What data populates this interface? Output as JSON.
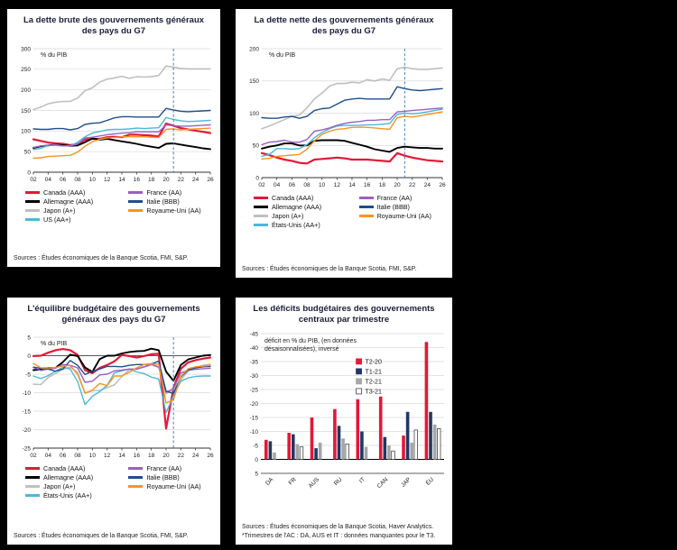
{
  "colors": {
    "canada_red": "#e31837",
    "allemagne_black": "#000000",
    "japon_gray": "#bfbfbf",
    "us_lightblue": "#4db8d6",
    "france_purple": "#9a5fc7",
    "italie_navy": "#1f4e8c",
    "royaume_uni_orange": "#f79420",
    "t1_21_navy": "#1f3864",
    "t2_21_gray": "#a6a6a6",
    "forecast_line_blue": "#4a7ebb"
  },
  "chart_data": [
    {
      "type": "line",
      "title": "La dette brute des gouvernements généraux des pays du G7",
      "annotation": "% du PIB",
      "sources": "Sources : Études économiques de la Banque Scotia, FMI, S&P.",
      "ylim": [
        0,
        300
      ],
      "yticks": [
        0,
        50,
        100,
        150,
        200,
        250,
        300
      ],
      "x_years": [
        2002,
        2003,
        2004,
        2005,
        2006,
        2007,
        2008,
        2009,
        2010,
        2011,
        2012,
        2013,
        2014,
        2015,
        2016,
        2017,
        2018,
        2019,
        2020,
        2021,
        2022,
        2023,
        2024,
        2025,
        2026
      ],
      "xtick_labels": [
        "02",
        "04",
        "06",
        "08",
        "10",
        "12",
        "14",
        "16",
        "18",
        "20",
        "22",
        "24",
        "26"
      ],
      "forecast_vline": 2021,
      "legend_columns": [
        [
          0,
          1,
          2,
          3
        ],
        [
          4,
          5,
          6
        ]
      ],
      "series": [
        {
          "name": "Canada (AAA)",
          "color": "#e31837",
          "width": 2.2,
          "values": [
            80,
            76,
            72,
            70,
            69,
            66,
            68,
            79,
            81,
            81,
            85,
            86,
            85,
            91,
            91,
            90,
            89,
            87,
            118,
            113,
            107,
            104,
            101,
            98,
            95
          ]
        },
        {
          "name": "Allemagne (AAA)",
          "color": "#000000",
          "width": 1.9,
          "values": [
            59,
            63,
            65,
            67,
            66,
            64,
            65,
            73,
            82,
            79,
            81,
            78,
            75,
            72,
            69,
            65,
            62,
            59,
            69,
            70,
            67,
            64,
            61,
            58,
            56
          ]
        },
        {
          "name": "Japon (A+)",
          "color": "#bfbfbf",
          "width": 1.6,
          "values": [
            152,
            158,
            166,
            170,
            172,
            172,
            180,
            198,
            205,
            219,
            226,
            229,
            233,
            228,
            232,
            231,
            232,
            235,
            258,
            255,
            252,
            251,
            251,
            251,
            251
          ]
        },
        {
          "name": "US (AA+)",
          "color": "#4db8d6",
          "width": 1.4,
          "values": [
            55,
            58,
            65,
            65,
            64,
            64,
            73,
            86,
            95,
            99,
            103,
            104,
            104,
            105,
            107,
            106,
            107,
            108,
            133,
            128,
            125,
            123,
            124,
            125,
            126
          ]
        },
        {
          "name": "France (AA)",
          "color": "#9a5fc7",
          "width": 1.4,
          "values": [
            60,
            64,
            65,
            67,
            64,
            64,
            68,
            83,
            85,
            88,
            91,
            93,
            95,
            96,
            98,
            98,
            98,
            98,
            115,
            113,
            112,
            112,
            113,
            114,
            115
          ]
        },
        {
          "name": "Italie (BBB)",
          "color": "#1f4e8c",
          "width": 1.4,
          "values": [
            105,
            104,
            104,
            106,
            106,
            103,
            106,
            116,
            119,
            120,
            126,
            132,
            135,
            135,
            134,
            134,
            134,
            134,
            155,
            151,
            148,
            147,
            148,
            149,
            150
          ]
        },
        {
          "name": "Royaume-Uni (AA)",
          "color": "#f79420",
          "width": 1.4,
          "values": [
            34,
            35,
            38,
            39,
            40,
            41,
            49,
            63,
            74,
            80,
            83,
            84,
            86,
            86,
            86,
            86,
            85,
            84,
            104,
            105,
            103,
            104,
            105,
            106,
            107
          ]
        }
      ]
    },
    {
      "type": "line",
      "title": "La dette nette des gouvernements généraux des pays du G7",
      "annotation": "% du PIB",
      "sources": "Sources : Études économiques de la Banque Scotia, FMI, S&P.",
      "ylim": [
        0,
        200
      ],
      "yticks": [
        0,
        50,
        100,
        150,
        200
      ],
      "x_years": [
        2002,
        2003,
        2004,
        2005,
        2006,
        2007,
        2008,
        2009,
        2010,
        2011,
        2012,
        2013,
        2014,
        2015,
        2016,
        2017,
        2018,
        2019,
        2020,
        2021,
        2022,
        2023,
        2024,
        2025,
        2026
      ],
      "xtick_labels": [
        "02",
        "04",
        "06",
        "08",
        "10",
        "12",
        "14",
        "16",
        "18",
        "20",
        "22",
        "24",
        "26"
      ],
      "forecast_vline": 2021,
      "legend_columns": [
        [
          0,
          1,
          2,
          3
        ],
        [
          4,
          5,
          6
        ]
      ],
      "series": [
        {
          "name": "Canada (AAA)",
          "color": "#e31837",
          "width": 2.2,
          "values": [
            38,
            35,
            31,
            28,
            26,
            23,
            22,
            28,
            29,
            30,
            31,
            30,
            28,
            28,
            28,
            27,
            26,
            25,
            38,
            34,
            31,
            29,
            27,
            26,
            25
          ]
        },
        {
          "name": "Allemagne (AAA)",
          "color": "#000000",
          "width": 1.9,
          "values": [
            45,
            48,
            50,
            53,
            53,
            50,
            50,
            57,
            58,
            58,
            58,
            57,
            54,
            51,
            48,
            44,
            42,
            40,
            46,
            48,
            47,
            46,
            46,
            45,
            45
          ]
        },
        {
          "name": "Japon (A+)",
          "color": "#bfbfbf",
          "width": 1.6,
          "values": [
            76,
            80,
            85,
            90,
            95,
            97,
            108,
            122,
            131,
            142,
            146,
            146,
            148,
            147,
            152,
            150,
            153,
            151,
            169,
            171,
            169,
            168,
            168,
            169,
            170
          ]
        },
        {
          "name": "États-Unis (AA+)",
          "color": "#4db8d6",
          "width": 1.4,
          "values": [
            33,
            36,
            45,
            45,
            44,
            45,
            51,
            62,
            70,
            76,
            80,
            81,
            81,
            81,
            82,
            82,
            83,
            84,
            98,
            100,
            99,
            100,
            102,
            104,
            106
          ]
        },
        {
          "name": "France (AA)",
          "color": "#9a5fc7",
          "width": 1.4,
          "values": [
            51,
            55,
            56,
            58,
            55,
            55,
            59,
            72,
            74,
            77,
            81,
            84,
            86,
            87,
            89,
            89,
            90,
            90,
            102,
            103,
            104,
            105,
            106,
            107,
            108
          ]
        },
        {
          "name": "Italie (BBB)",
          "color": "#1f4e8c",
          "width": 1.4,
          "values": [
            93,
            92,
            92,
            94,
            95,
            92,
            95,
            104,
            107,
            108,
            114,
            120,
            122,
            123,
            122,
            122,
            122,
            122,
            141,
            138,
            136,
            135,
            136,
            137,
            138
          ]
        },
        {
          "name": "Royaume-Uni (AA)",
          "color": "#f79420",
          "width": 1.4,
          "values": [
            29,
            30,
            33,
            34,
            35,
            36,
            44,
            57,
            67,
            72,
            75,
            76,
            78,
            78,
            78,
            77,
            76,
            75,
            93,
            95,
            94,
            96,
            98,
            100,
            102
          ]
        }
      ]
    },
    {
      "type": "line",
      "title": "L'équilibre budgétaire des gouvernements généraux des pays du G7",
      "annotation": "% du PIB",
      "sources": "Sources : Études économiques de la Banque Scotia, FMI, S&P.",
      "ylim": [
        -25,
        5
      ],
      "yticks": [
        -25,
        -20,
        -15,
        -10,
        -5,
        0,
        5
      ],
      "x_years": [
        2002,
        2003,
        2004,
        2005,
        2006,
        2007,
        2008,
        2009,
        2010,
        2011,
        2012,
        2013,
        2014,
        2015,
        2016,
        2017,
        2018,
        2019,
        2020,
        2021,
        2022,
        2023,
        2024,
        2025,
        2026
      ],
      "xtick_labels": [
        "02",
        "04",
        "06",
        "08",
        "10",
        "12",
        "14",
        "16",
        "18",
        "20",
        "22",
        "24",
        "26"
      ],
      "forecast_vline": 2021,
      "legend_columns": [
        [
          0,
          1,
          2,
          3
        ],
        [
          4,
          5,
          6
        ]
      ],
      "series": [
        {
          "name": "Canada (AAA)",
          "color": "#e31837",
          "width": 2.2,
          "values": [
            -0.1,
            0,
            0.8,
            1.5,
            1.8,
            1.5,
            0.2,
            -3.9,
            -4.7,
            -3.3,
            -2.5,
            -1.5,
            0.2,
            -0.1,
            -0.5,
            -0.1,
            0.4,
            0.5,
            -19.7,
            -8.7,
            -3.5,
            -1.8,
            -1.2,
            -0.8,
            -0.5
          ]
        },
        {
          "name": "Allemagne (AAA)",
          "color": "#000000",
          "width": 1.9,
          "values": [
            -3.9,
            -3.7,
            -3.3,
            -3.3,
            -1.7,
            0.3,
            -0.1,
            -3.2,
            -4.4,
            -0.9,
            0,
            0,
            0.6,
            1,
            1.2,
            1.3,
            1.9,
            1.5,
            -4.3,
            -6.8,
            -2.5,
            -1,
            -0.5,
            0,
            0.2
          ]
        },
        {
          "name": "Japon (A+)",
          "color": "#bfbfbf",
          "width": 1.6,
          "values": [
            -7.7,
            -7.8,
            -5.9,
            -4.8,
            -3.7,
            -3.1,
            -4.5,
            -10.2,
            -9.5,
            -9.4,
            -8.6,
            -7.9,
            -5.6,
            -3.8,
            -3.7,
            -3.1,
            -2.5,
            -3.1,
            -10.3,
            -9,
            -6.5,
            -4.2,
            -3.2,
            -2.6,
            -2.3
          ]
        },
        {
          "name": "États-Unis (AA+)",
          "color": "#4db8d6",
          "width": 1.4,
          "values": [
            -5.5,
            -6.2,
            -5.4,
            -4.2,
            -3.1,
            -3.6,
            -7,
            -13.2,
            -11,
            -9.7,
            -8,
            -4.6,
            -4.1,
            -3.6,
            -4.4,
            -4.8,
            -5.8,
            -6.3,
            -15.4,
            -10.8,
            -6.9,
            -6,
            -5.6,
            -5.5,
            -5.5
          ]
        },
        {
          "name": "France (AA)",
          "color": "#9a5fc7",
          "width": 1.4,
          "values": [
            -3.2,
            -4,
            -3.6,
            -3.4,
            -2.4,
            -2.6,
            -3.3,
            -7.2,
            -6.9,
            -5.2,
            -5,
            -4.1,
            -3.9,
            -3.6,
            -3.6,
            -3,
            -2.3,
            -3.1,
            -9.9,
            -8.9,
            -4.7,
            -3.9,
            -3.7,
            -3.5,
            -3.4
          ]
        },
        {
          "name": "Italie (BBB)",
          "color": "#1f4e8c",
          "width": 1.4,
          "values": [
            -3.1,
            -3.4,
            -3.6,
            -4.2,
            -3.6,
            -1.3,
            -2.6,
            -5.1,
            -4.2,
            -3.6,
            -2.9,
            -2.9,
            -3,
            -2.6,
            -2.4,
            -2.4,
            -2.2,
            -1.5,
            -9.6,
            -10.2,
            -5.8,
            -3.8,
            -3.3,
            -3,
            -2.9
          ]
        },
        {
          "name": "Royaume-Uni (AA)",
          "color": "#f79420",
          "width": 1.4,
          "values": [
            -2.1,
            -3.3,
            -3.3,
            -3.2,
            -2.8,
            -2.6,
            -5.1,
            -10.1,
            -9.3,
            -7.5,
            -8.1,
            -5.5,
            -5.5,
            -4.5,
            -3.3,
            -2.4,
            -2.2,
            -2.3,
            -12.8,
            -11.9,
            -5.6,
            -3.5,
            -3,
            -2.8,
            -2.6
          ]
        }
      ]
    },
    {
      "type": "bar",
      "title": "Les déficits budgétaires des gouvernements centraux par trimestre",
      "annotation_lines": [
        "déficit en % du PIB, (en données",
        "désaisonnalisées), inversé"
      ],
      "sources": "Sources : Études économiques de la Banque Scotia, Haver Analytics.",
      "note": "*Trimestres de l'AC : DA, AUS et IT : données manquantes pour le T3.",
      "ylim": [
        -45,
        5
      ],
      "inverted": true,
      "yticks": [
        -45,
        -40,
        -35,
        -30,
        -25,
        -20,
        -15,
        -10,
        -5,
        0,
        5
      ],
      "categories": [
        "DA",
        "FR",
        "AUS",
        "RU",
        "IT",
        "CAN",
        "JAP",
        "ÉU"
      ],
      "series": [
        {
          "name": "T2-20",
          "color": "#e31837",
          "outline": false,
          "values": [
            -7,
            -9.5,
            -15,
            -18,
            -21.5,
            -22.5,
            -8.5,
            -42
          ]
        },
        {
          "name": "T1-21",
          "color": "#1f3864",
          "outline": false,
          "values": [
            -6.5,
            -9,
            -4,
            -12,
            -10,
            -8,
            -17,
            -17
          ]
        },
        {
          "name": "T2-21",
          "color": "#a6a6a6",
          "outline": false,
          "values": [
            -2.5,
            -5.5,
            -6,
            -7.5,
            -4.5,
            -5,
            -6,
            -12.5
          ]
        },
        {
          "name": "T3-21",
          "color": "#ffffff",
          "outline": true,
          "values": [
            null,
            -4.5,
            null,
            -5.5,
            null,
            -3,
            -10.5,
            -11
          ]
        }
      ]
    }
  ]
}
